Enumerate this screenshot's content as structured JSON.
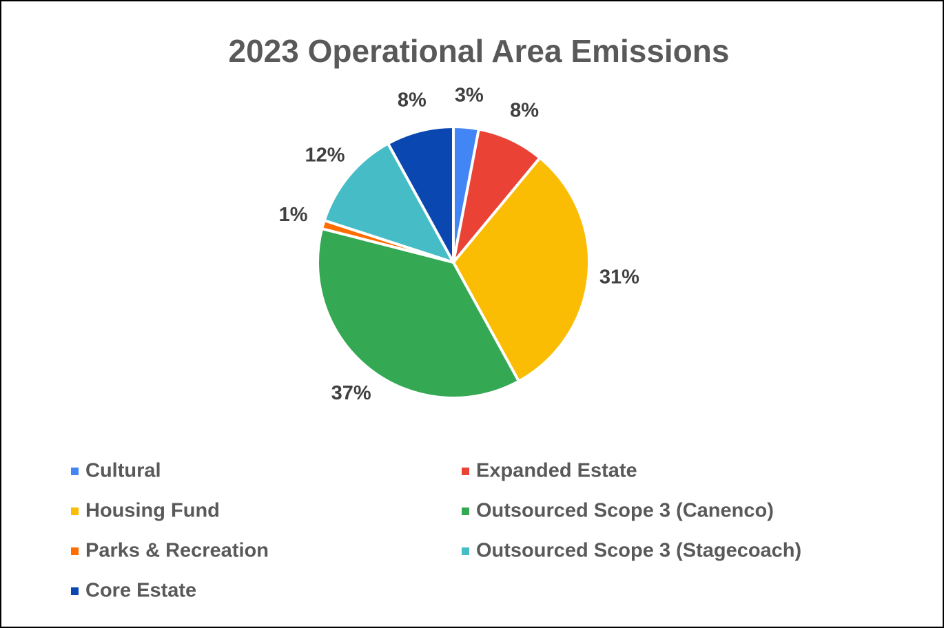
{
  "chart_data": {
    "type": "pie",
    "title": "2023 Operational Area Emissions",
    "categories": [
      "Cultural",
      "Expanded Estate",
      "Housing Fund",
      "Outsourced Scope 3 (Canenco)",
      "Parks & Recreation",
      "Outsourced Scope 3 (Stagecoach)",
      "Core Estate"
    ],
    "values": [
      3,
      8,
      31,
      37,
      1,
      12,
      8
    ],
    "value_labels": [
      "3%",
      "8%",
      "31%",
      "37%",
      "1%",
      "12%",
      "8%"
    ],
    "colors": [
      "#4285f4",
      "#ea4335",
      "#fbbc04",
      "#34a853",
      "#ff6d01",
      "#46bdc6",
      "#0b47b0"
    ],
    "legend": "bottom"
  }
}
